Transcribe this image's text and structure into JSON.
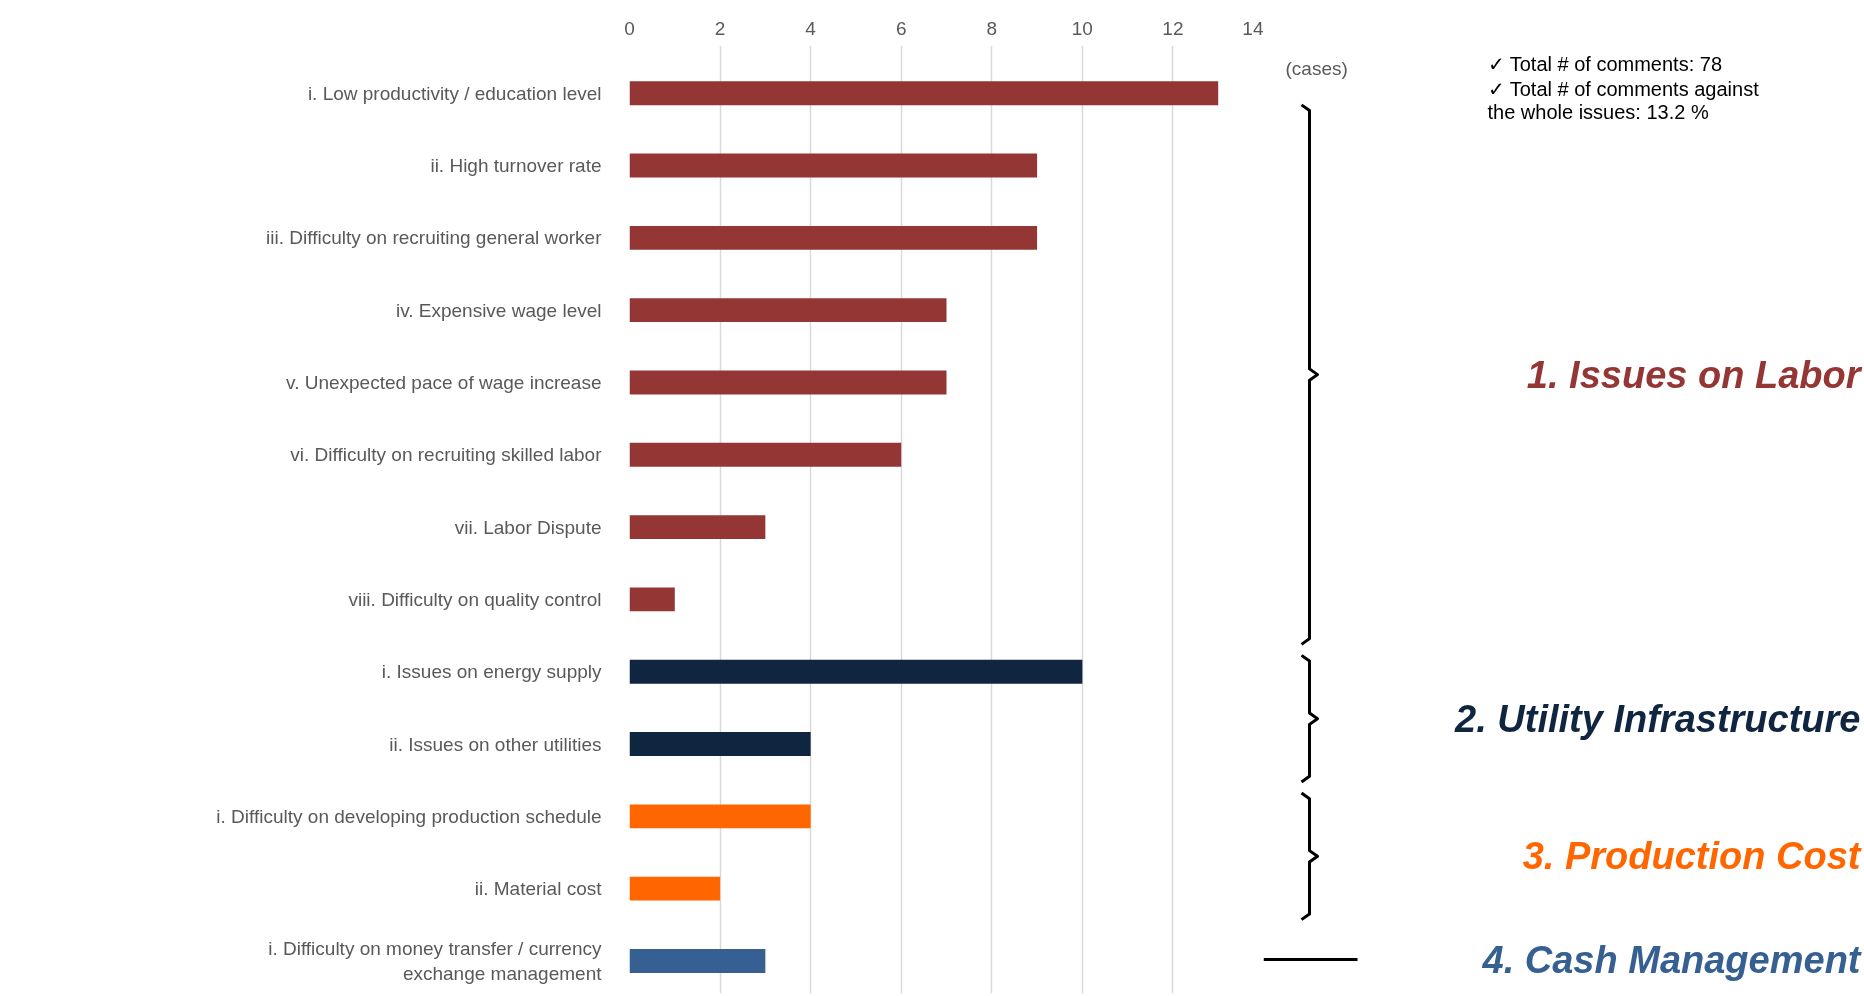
{
  "chart_data": {
    "type": "bar",
    "orientation": "horizontal",
    "categories": [
      "i. Low productivity / education level",
      "ii. High turnover rate",
      "iii. Difficulty on recruiting general worker",
      "iv. Expensive wage level",
      "v. Unexpected pace of wage increase",
      "vi. Difficulty on recruiting skilled labor",
      "vii. Labor Dispute",
      "viii. Difficulty on quality control",
      "i. Issues on energy supply",
      "ii. Issues on other utilities",
      "i. Difficulty on developing production schedule",
      "ii. Material cost",
      "i. Difficulty on money transfer / currency\nexchange management"
    ],
    "values": [
      13,
      9,
      9,
      7,
      7,
      6,
      3,
      1,
      10,
      4,
      4,
      2,
      3
    ],
    "colors": [
      "#943634",
      "#943634",
      "#943634",
      "#943634",
      "#943634",
      "#943634",
      "#943634",
      "#943634",
      "#10253f",
      "#10253f",
      "#ff6600",
      "#ff6600",
      "#366092"
    ],
    "xlim": [
      0,
      14
    ],
    "xticks": [
      0,
      2,
      4,
      6,
      8,
      10,
      12,
      14
    ],
    "grid": "x",
    "annotations": [
      "(cases)",
      "✓  Total # of comments: 78",
      "✓  Total # of comments against\n    the whole issues: 13.2 %",
      "1. Issues on Labor",
      "2. Utility Infrastructure",
      "3. Production Cost",
      "4. Cash Management"
    ]
  }
}
